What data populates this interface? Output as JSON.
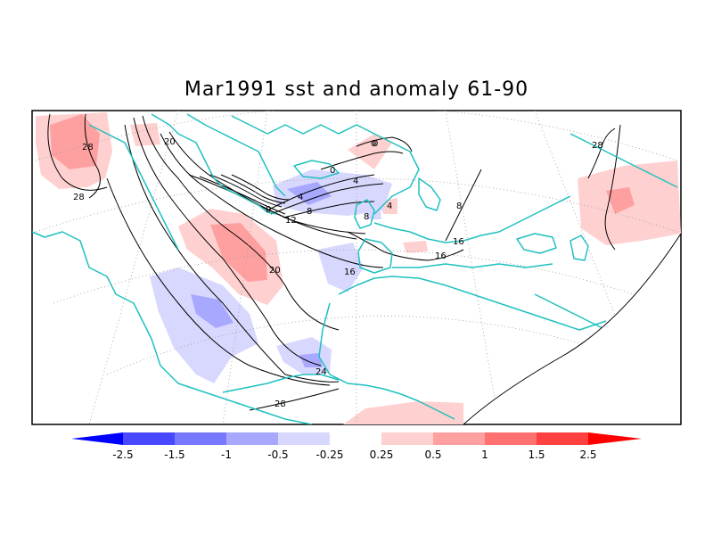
{
  "title": "Mar1991 sst and anomaly 61-90",
  "colors": {
    "coast": "#20c0c0",
    "contour": "#000000",
    "anom_pos_1": "#ffd0d0",
    "anom_pos_2": "#ffa0a0",
    "anom_pos_3": "#ff7070",
    "anom_pos_4": "#ff4040",
    "anom_pos_5": "#ff0000",
    "anom_neg_1": "#d8d8ff",
    "anom_neg_2": "#a8a8ff",
    "anom_neg_3": "#7878ff",
    "anom_neg_4": "#4848ff",
    "anom_neg_5": "#0000ff"
  },
  "contour_labels": [
    "28",
    "28",
    "20",
    "0",
    "4",
    "8",
    "12",
    "16",
    "20",
    "24",
    "28",
    "0",
    "0",
    "4",
    "4",
    "8",
    "16",
    "16",
    "8",
    "28",
    "0"
  ],
  "colorbar": {
    "labels": [
      "-2.5",
      "-1.5",
      "-1",
      "-0.5",
      "-0.25",
      "0.25",
      "0.5",
      "1",
      "1.5",
      "2.5"
    ]
  }
}
